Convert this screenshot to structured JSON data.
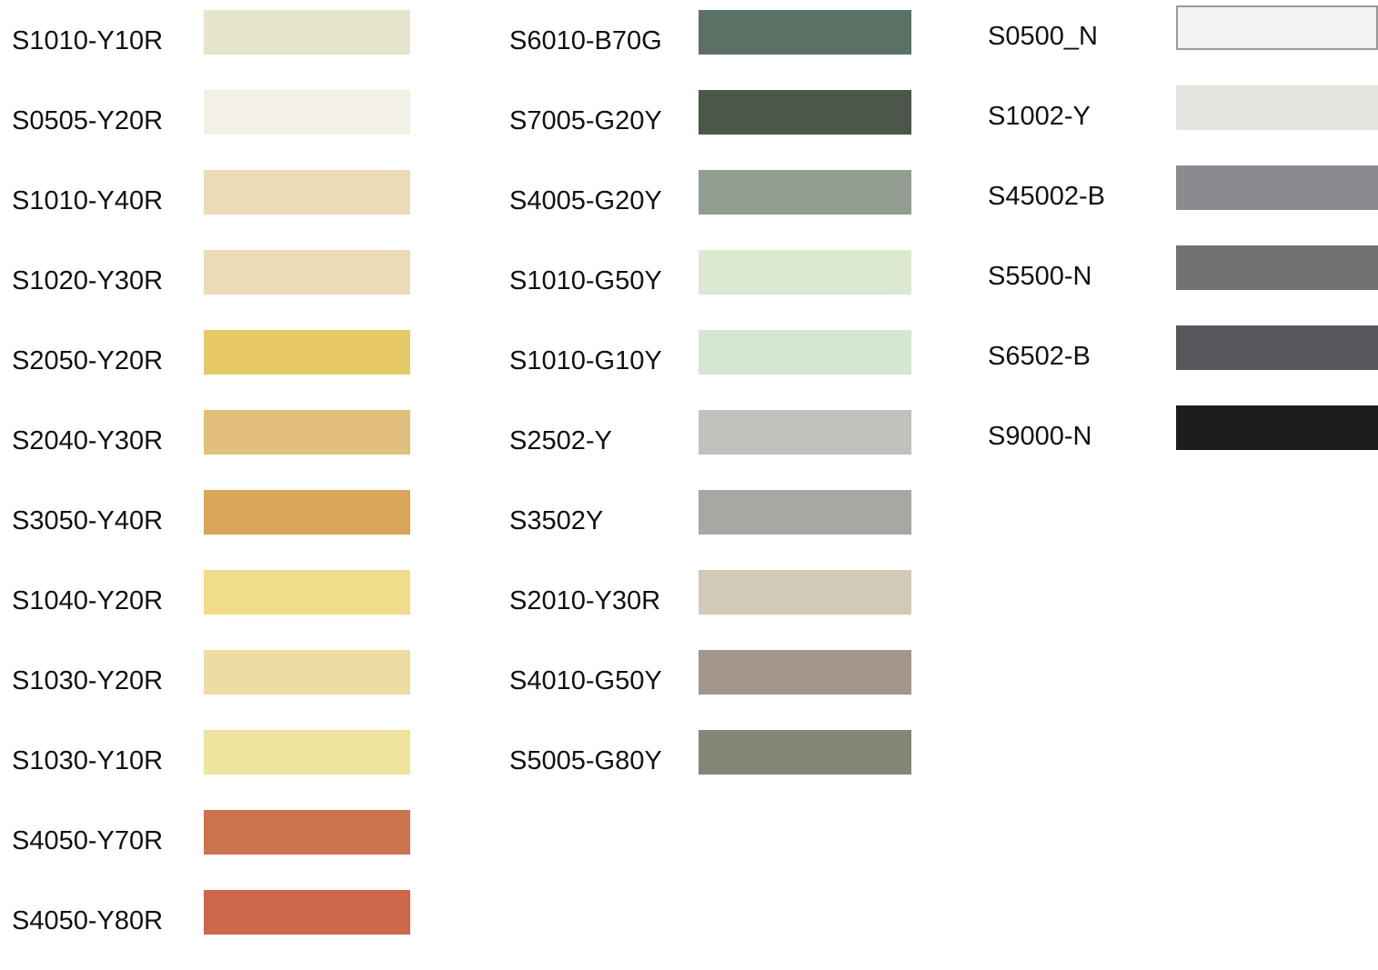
{
  "columns": [
    {
      "swatches": [
        {
          "label": "S1010-Y10R",
          "color": "#e7e4cd"
        },
        {
          "label": "S0505-Y20R",
          "color": "#f3f1e5"
        },
        {
          "label": "S1010-Y40R",
          "color": "#ebdbb8"
        },
        {
          "label": "S1020-Y30R",
          "color": "#ebdbb8"
        },
        {
          "label": "S2050-Y20R",
          "color": "#e5ca67"
        },
        {
          "label": "S2040-Y30R",
          "color": "#e0c07c"
        },
        {
          "label": "S3050-Y40R",
          "color": "#d8a559"
        },
        {
          "label": "S1040-Y20R",
          "color": "#f0dc8a"
        },
        {
          "label": "S1030-Y20R",
          "color": "#efdca5"
        },
        {
          "label": "S1030-Y10R",
          "color": "#ede4a0"
        },
        {
          "label": "S4050-Y70R",
          "color": "#cc744e"
        },
        {
          "label": "S4050-Y80R",
          "color": "#cc674c"
        }
      ]
    },
    {
      "swatches": [
        {
          "label": "S6010-B70G",
          "color": "#5b7166"
        },
        {
          "label": "S7005-G20Y",
          "color": "#4b5749"
        },
        {
          "label": "S4005-G20Y",
          "color": "#939e92"
        },
        {
          "label": "S1010-G50Y",
          "color": "#dce8d0"
        },
        {
          "label": "S1010-G10Y",
          "color": "#d2e8d0"
        },
        {
          "label": "S2502-Y",
          "color": "#c0c1bb"
        },
        {
          "label": "S3502Y",
          "color": "#a7a8a2"
        },
        {
          "label": "S2010-Y30R",
          "color": "#d2c9b6"
        },
        {
          "label": "S4010-G50Y",
          "color": "#a3978a"
        },
        {
          "label": "S5005-G80Y",
          "color": "#838577"
        }
      ]
    },
    {
      "swatches": [
        {
          "label": "S0500_N",
          "color": "#f2f2f2",
          "outlined": true
        },
        {
          "label": "S1002-Y",
          "color": "#e4e5e0"
        },
        {
          "label": "S45002-B",
          "color": "#8a8a8f"
        },
        {
          "label": "S5500-N",
          "color": "#727272"
        },
        {
          "label": "S6502-B",
          "color": "#58575c"
        },
        {
          "label": "S9000-N",
          "color": "#1c1c1c"
        }
      ]
    }
  ]
}
